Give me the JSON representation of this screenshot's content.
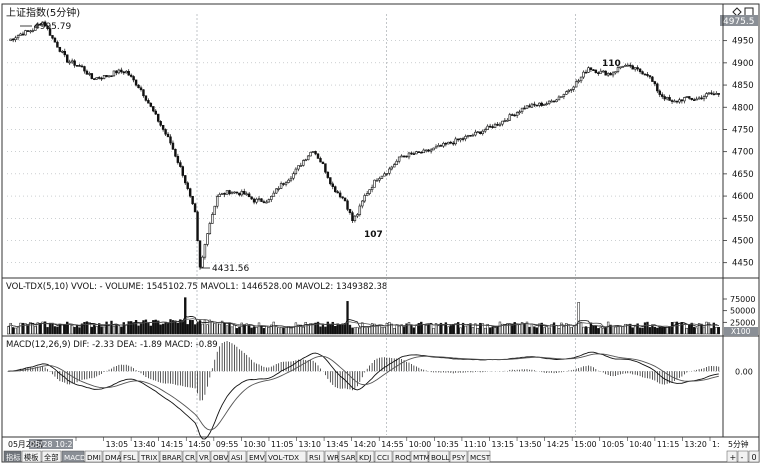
{
  "window": {
    "title": "上证指数(5分钟)",
    "corner_icons": [
      "diamond-icon",
      "square-icon"
    ],
    "price_badge": "4975.5"
  },
  "price_panel": {
    "annotations": {
      "high": "4995.79",
      "low": "4431.56",
      "mark_a": "107",
      "mark_b": "110"
    }
  },
  "volume_panel": {
    "header": "VOL-TDX(5,10) VVOL: -   VOLUME: 1545102.75  MAVOL1: 1446528.00  MAVOL2: 1349382.38",
    "unit_badge": "X100"
  },
  "macd_panel": {
    "header": "MACD(12,26,9)  DIF: -2.33  DEA: -1.89  MACD: -0.89"
  },
  "time_axis": {
    "start_label": "05月28日",
    "highlight": "05/28 10:20",
    "labels": [
      "10:00",
      "13:05",
      "13:40",
      "14:15",
      "14:50",
      "09:55",
      "10:30",
      "11:05",
      "13:10",
      "13:45",
      "14:20",
      "14:55",
      "10:00",
      "10:35",
      "11:10",
      "13:15",
      "13:50",
      "14:25",
      "15:00",
      "10:05",
      "10:40",
      "11:15",
      "13:20",
      "1:"
    ],
    "period": "5分钟"
  },
  "bottom_tabs": {
    "items": [
      "指标",
      "模板",
      "全部",
      "MACD",
      "DMI",
      "DMA",
      "FSL",
      "TRIX",
      "BRAR",
      "CR",
      "VR",
      "OBV",
      "ASI",
      "EMV",
      "VOL-TDX",
      "RSI",
      "WR",
      "SAR",
      "KDJ",
      "CCI",
      "ROC",
      "MTM",
      "BOLL",
      "PSY",
      "MCST"
    ],
    "active_index": 3,
    "right_buttons": [
      "+",
      "-",
      "0"
    ]
  },
  "colors": {
    "up": "#ffffff",
    "down": "#111111",
    "line": "#111111",
    "grid": "#9aa0a6",
    "badge": "#8a8f96"
  },
  "chart_data": {
    "type": "line",
    "price": {
      "yticks": [
        4450,
        4500,
        4550,
        4600,
        4650,
        4700,
        4750,
        4800,
        4850,
        4900,
        4950
      ],
      "ylim": [
        4420,
        5010
      ],
      "path": [
        [
          0,
          4950
        ],
        [
          5,
          4965
        ],
        [
          10,
          4975
        ],
        [
          14,
          4995.79
        ],
        [
          18,
          4955
        ],
        [
          24,
          4905
        ],
        [
          30,
          4890
        ],
        [
          34,
          4865
        ],
        [
          40,
          4870
        ],
        [
          44,
          4880
        ],
        [
          48,
          4880
        ],
        [
          54,
          4840
        ],
        [
          60,
          4780
        ],
        [
          66,
          4720
        ],
        [
          71,
          4650
        ],
        [
          76,
          4560
        ],
        [
          78,
          4431.56
        ],
        [
          81,
          4520
        ],
        [
          85,
          4600
        ],
        [
          90,
          4610
        ],
        [
          96,
          4605
        ],
        [
          100,
          4590
        ],
        [
          106,
          4590
        ],
        [
          110,
          4620
        ],
        [
          116,
          4650
        ],
        [
          120,
          4680
        ],
        [
          124,
          4705
        ],
        [
          128,
          4670
        ],
        [
          132,
          4620
        ],
        [
          137,
          4590
        ],
        [
          140,
          4545
        ],
        [
          142,
          4560
        ],
        [
          145,
          4600
        ],
        [
          150,
          4640
        ],
        [
          155,
          4660
        ],
        [
          160,
          4690
        ],
        [
          170,
          4700
        ],
        [
          180,
          4720
        ],
        [
          190,
          4740
        ],
        [
          200,
          4765
        ],
        [
          210,
          4800
        ],
        [
          220,
          4810
        ],
        [
          226,
          4830
        ],
        [
          232,
          4860
        ],
        [
          236,
          4890
        ],
        [
          240,
          4880
        ],
        [
          245,
          4875
        ],
        [
          250,
          4895
        ],
        [
          255,
          4885
        ],
        [
          260,
          4875
        ],
        [
          265,
          4830
        ],
        [
          270,
          4810
        ],
        [
          275,
          4820
        ],
        [
          280,
          4818
        ],
        [
          285,
          4830
        ]
      ]
    },
    "volume": {
      "yticks": [
        25000,
        50000,
        75000
      ],
      "ylim": [
        0,
        90000
      ],
      "spikes": [
        [
          72,
          78000
        ],
        [
          138,
          70000
        ],
        [
          232,
          68000
        ]
      ]
    },
    "macd": {
      "yticks": [
        0
      ],
      "ylim": [
        -18,
        6
      ],
      "tick_label": "0.00"
    }
  }
}
